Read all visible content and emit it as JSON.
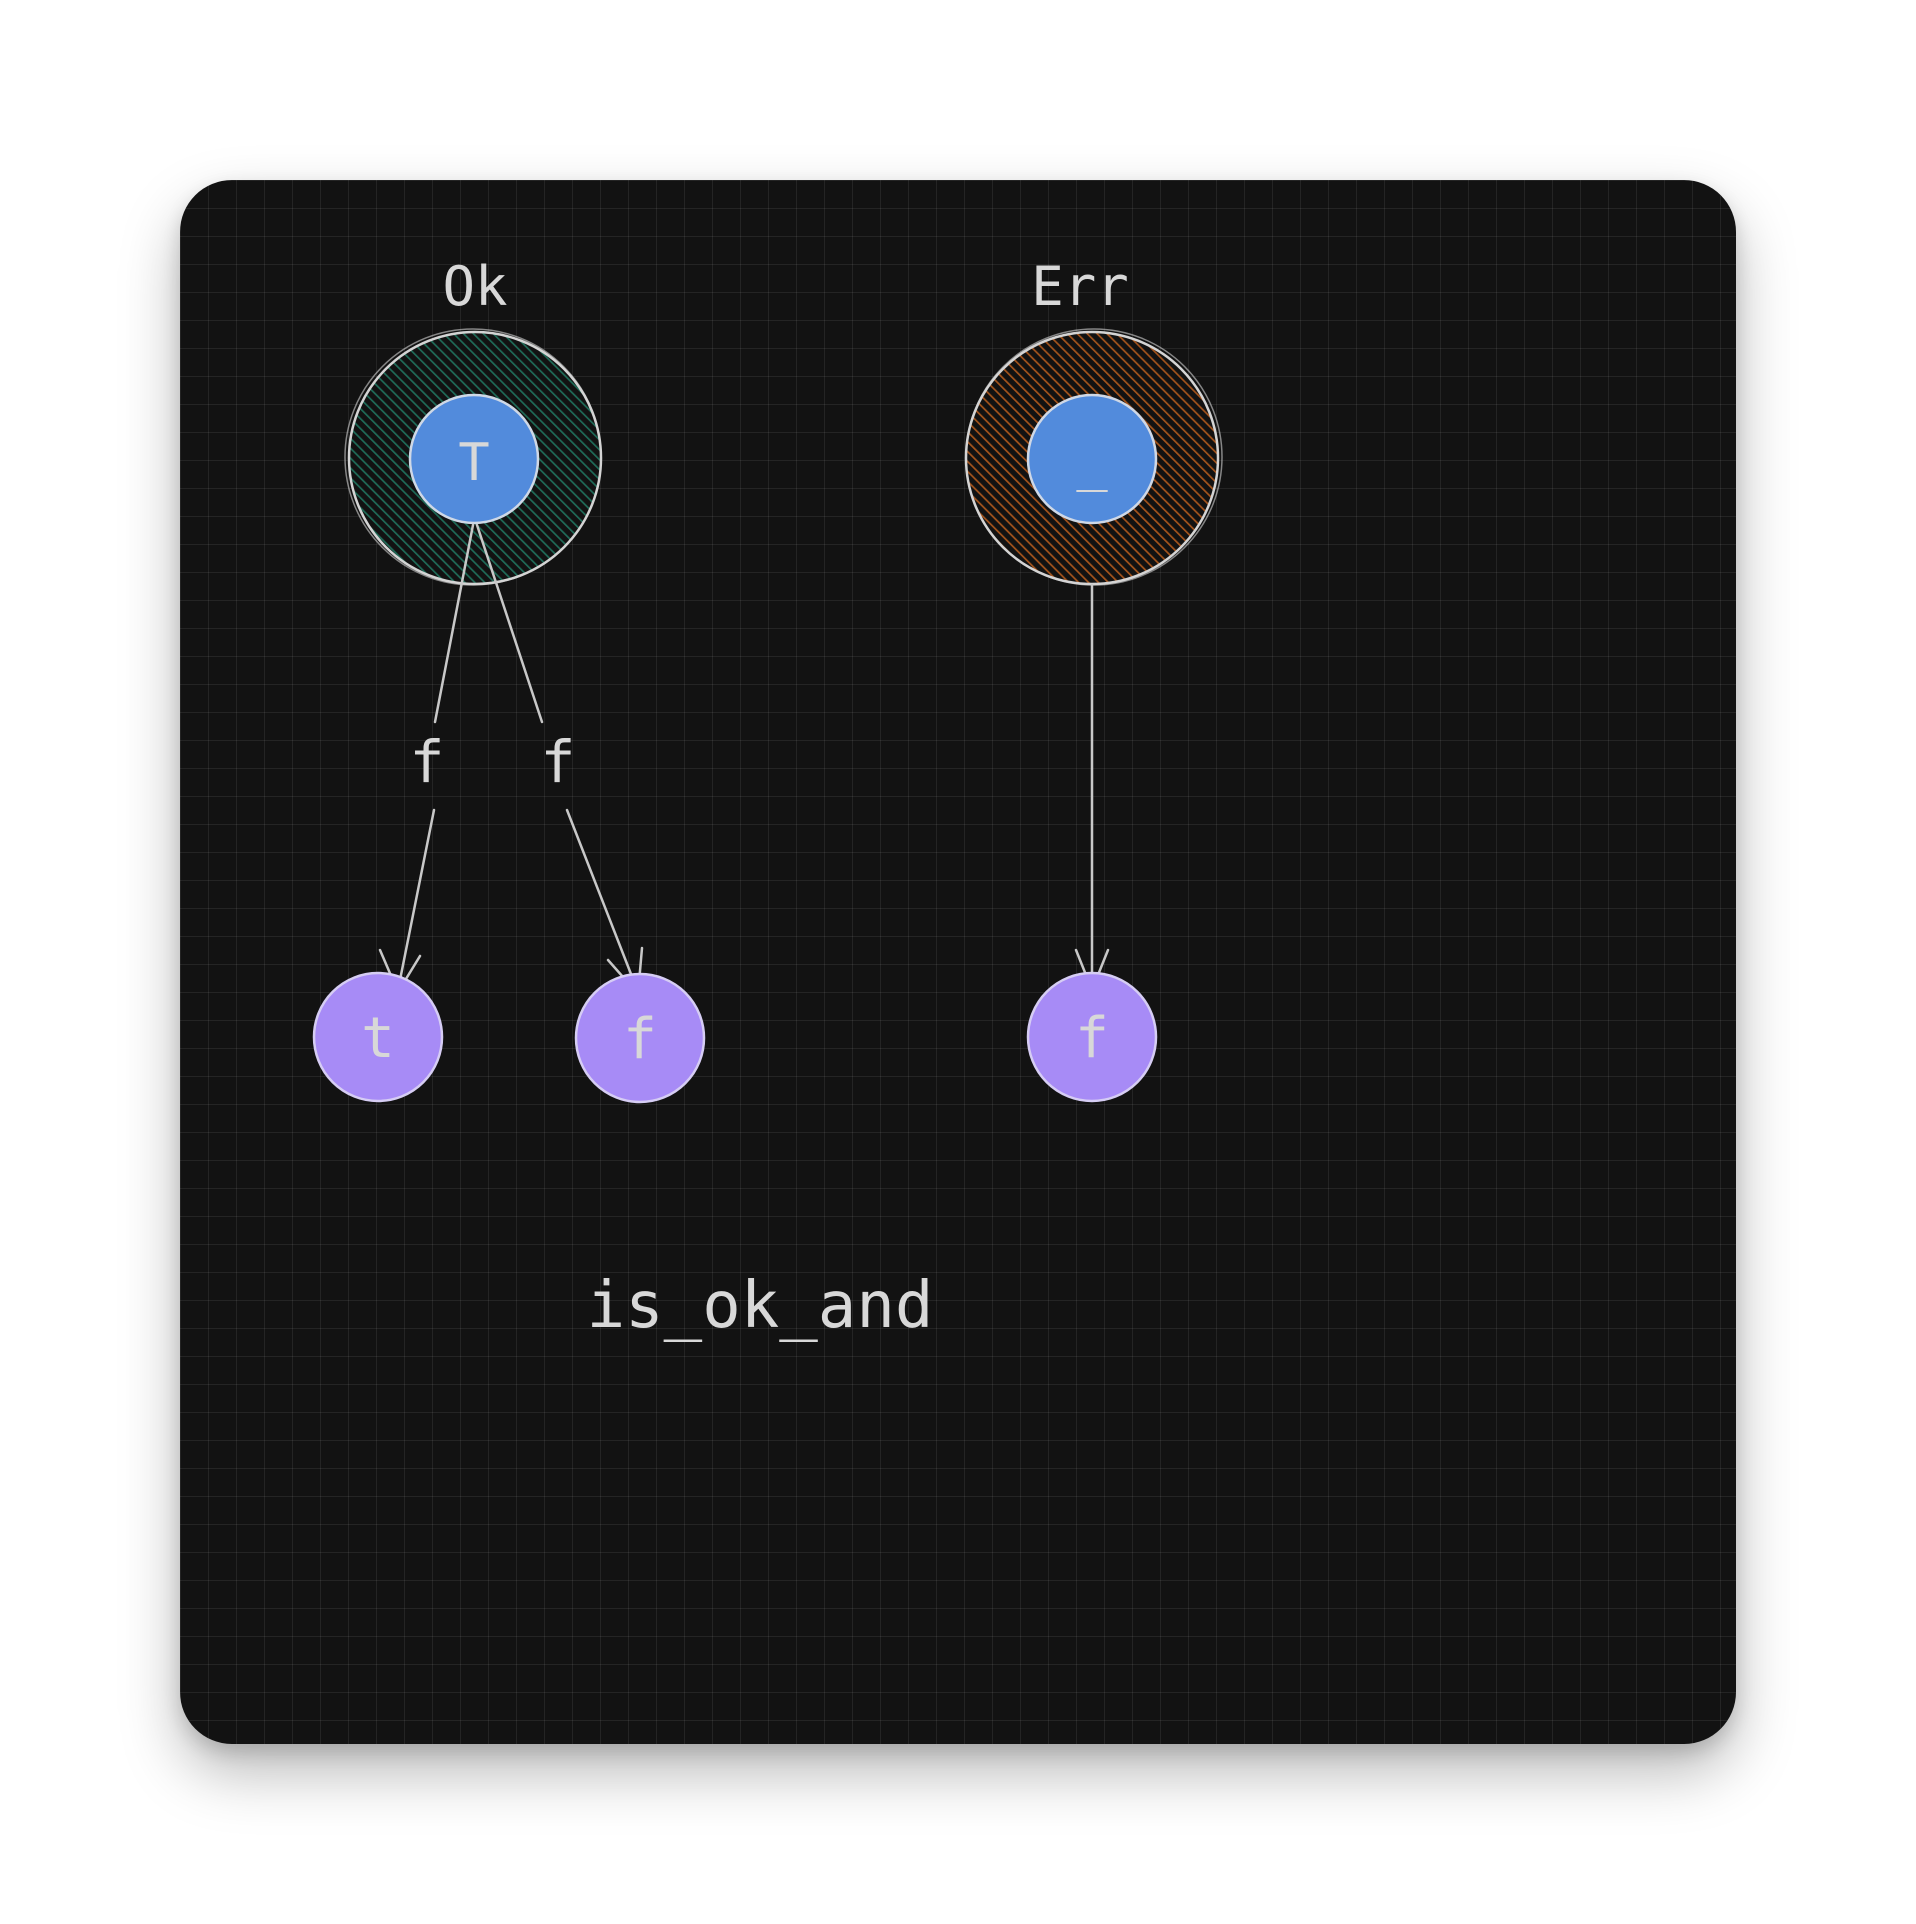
{
  "title": "is_ok_and",
  "variants": [
    {
      "name": "Ok",
      "inner": "T",
      "ring_color": "#1f6b58"
    },
    {
      "name": "Err",
      "inner": "_",
      "ring_color": "#a4541c"
    }
  ],
  "edge_label": "f",
  "edge_label_2": "f",
  "results": [
    {
      "label": "t"
    },
    {
      "label": "f"
    },
    {
      "label": "f"
    }
  ],
  "colors": {
    "background": "#121212",
    "inner_node": "#528bdc",
    "result_node": "#a78bf6",
    "stroke": "#d4d4d4"
  }
}
